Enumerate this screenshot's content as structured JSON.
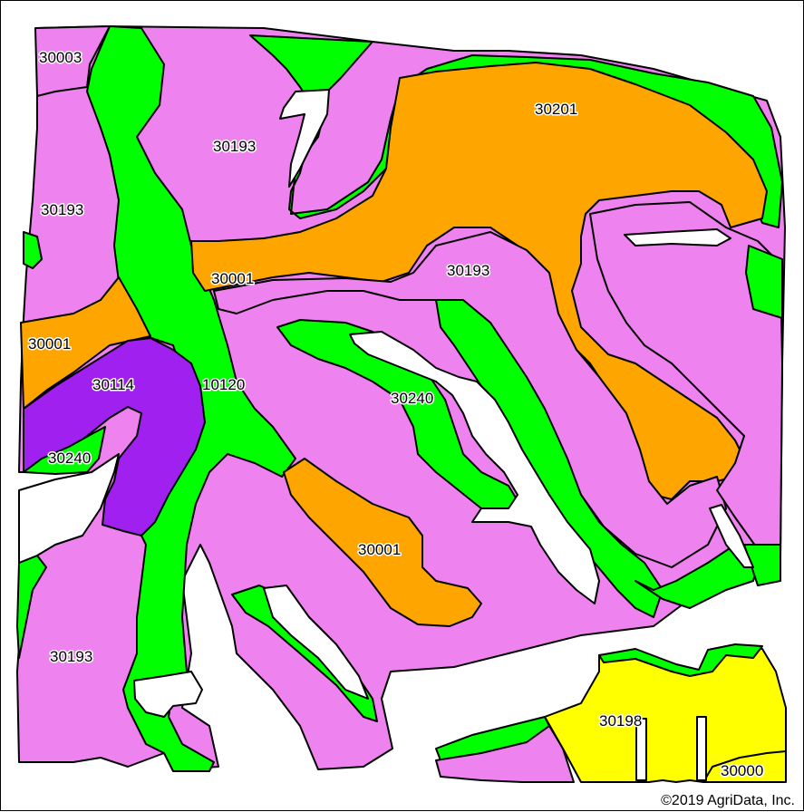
{
  "colors": {
    "pink": "#ee82ee",
    "green": "#00ff00",
    "orange": "#ffa500",
    "purple": "#a020f0",
    "yellow": "#ffff00",
    "background": "#ffffff"
  },
  "labels": {
    "l30003": "30003",
    "l30193_top": "30193",
    "l30193_left": "30193",
    "l30193_mid": "30193",
    "l30193_bottom": "30193",
    "l30201": "30201",
    "l30001_center": "30001",
    "l30001_left": "30001",
    "l30001_lower": "30001",
    "l30114": "30114",
    "l10120": "10120",
    "l30240_mid": "30240",
    "l30240_left": "30240",
    "l30198": "30198",
    "l30000": "30000"
  },
  "copyright": "©2019 AgriData, Inc."
}
